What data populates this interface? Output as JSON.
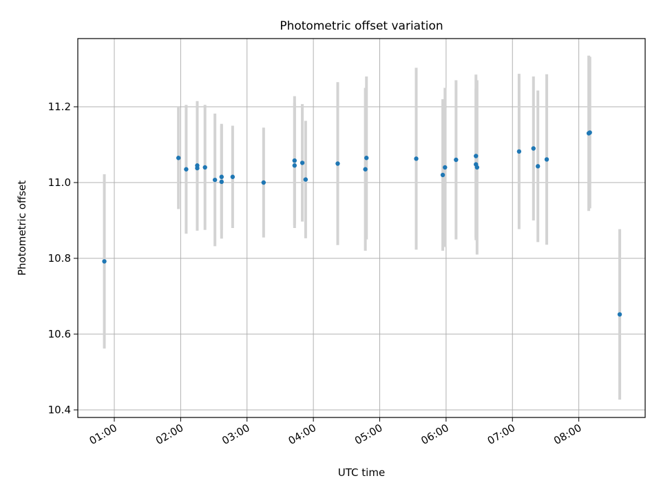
{
  "chart_data": {
    "type": "scatter",
    "title": "Photometric offset variation",
    "xlabel": "UTC time",
    "ylabel": "Photometric offset",
    "x_tick_labels": [
      "01:00",
      "02:00",
      "03:00",
      "04:00",
      "05:00",
      "06:00",
      "07:00",
      "08:00"
    ],
    "y_ticks": [
      10.4,
      10.6,
      10.8,
      11.0,
      11.2
    ],
    "xlim": [
      "00:27",
      "09:00"
    ],
    "ylim": [
      10.38,
      11.38
    ],
    "grid": true,
    "colors": {
      "marker": "#1f77b4",
      "error_bar": "#d3d3d3",
      "grid": "#b0b0b0"
    },
    "points": [
      {
        "x": "00:51",
        "y": 10.792,
        "yerr": 0.23
      },
      {
        "x": "01:58",
        "y": 11.065,
        "yerr": 0.135
      },
      {
        "x": "02:05",
        "y": 11.035,
        "yerr": 0.17
      },
      {
        "x": "02:15",
        "y": 11.045,
        "yerr": 0.17
      },
      {
        "x": "02:15",
        "y": 11.038,
        "yerr": 0.165
      },
      {
        "x": "02:22",
        "y": 11.04,
        "yerr": 0.165
      },
      {
        "x": "02:31",
        "y": 11.007,
        "yerr": 0.175
      },
      {
        "x": "02:37",
        "y": 11.015,
        "yerr": 0.14
      },
      {
        "x": "02:37",
        "y": 11.002,
        "yerr": 0.15
      },
      {
        "x": "02:47",
        "y": 11.015,
        "yerr": 0.135
      },
      {
        "x": "03:15",
        "y": 11.0,
        "yerr": 0.145
      },
      {
        "x": "03:43",
        "y": 11.058,
        "yerr": 0.17
      },
      {
        "x": "03:43",
        "y": 11.045,
        "yerr": 0.165
      },
      {
        "x": "03:50",
        "y": 11.052,
        "yerr": 0.155
      },
      {
        "x": "03:53",
        "y": 11.008,
        "yerr": 0.155
      },
      {
        "x": "04:22",
        "y": 11.05,
        "yerr": 0.215
      },
      {
        "x": "04:47",
        "y": 11.035,
        "yerr": 0.215
      },
      {
        "x": "04:48",
        "y": 11.065,
        "yerr": 0.215
      },
      {
        "x": "05:33",
        "y": 11.063,
        "yerr": 0.24
      },
      {
        "x": "05:57",
        "y": 11.02,
        "yerr": 0.2
      },
      {
        "x": "05:59",
        "y": 11.04,
        "yerr": 0.21
      },
      {
        "x": "06:09",
        "y": 11.06,
        "yerr": 0.21
      },
      {
        "x": "06:27",
        "y": 11.07,
        "yerr": 0.215
      },
      {
        "x": "06:27",
        "y": 11.048,
        "yerr": 0.2
      },
      {
        "x": "06:28",
        "y": 11.04,
        "yerr": 0.23
      },
      {
        "x": "07:06",
        "y": 11.082,
        "yerr": 0.205
      },
      {
        "x": "07:19",
        "y": 11.09,
        "yerr": 0.19
      },
      {
        "x": "07:23",
        "y": 11.043,
        "yerr": 0.2
      },
      {
        "x": "07:31",
        "y": 11.061,
        "yerr": 0.225
      },
      {
        "x": "08:09",
        "y": 11.13,
        "yerr": 0.205
      },
      {
        "x": "08:10",
        "y": 11.132,
        "yerr": 0.2
      },
      {
        "x": "08:37",
        "y": 10.652,
        "yerr": 0.225
      }
    ]
  }
}
